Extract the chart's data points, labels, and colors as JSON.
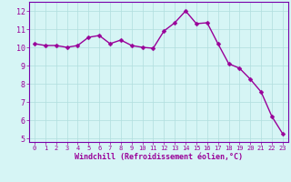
{
  "x": [
    0,
    1,
    2,
    3,
    4,
    5,
    6,
    7,
    8,
    9,
    10,
    11,
    12,
    13,
    14,
    15,
    16,
    17,
    18,
    19,
    20,
    21,
    22,
    23
  ],
  "y": [
    10.2,
    10.1,
    10.1,
    10.0,
    10.1,
    10.55,
    10.65,
    10.2,
    10.4,
    10.1,
    10.0,
    9.95,
    10.9,
    11.35,
    12.0,
    11.3,
    11.35,
    10.2,
    9.1,
    8.85,
    8.25,
    7.55,
    6.2,
    5.25
  ],
  "line_color": "#990099",
  "marker": "D",
  "marker_size": 2.5,
  "bg_color": "#d6f5f5",
  "grid_color": "#b0dede",
  "xlabel": "Windchill (Refroidissement éolien,°C)",
  "xlabel_color": "#990099",
  "tick_color": "#990099",
  "xlim": [
    -0.5,
    23.5
  ],
  "ylim": [
    4.8,
    12.5
  ],
  "yticks": [
    5,
    6,
    7,
    8,
    9,
    10,
    11,
    12
  ],
  "xticks": [
    0,
    1,
    2,
    3,
    4,
    5,
    6,
    7,
    8,
    9,
    10,
    11,
    12,
    13,
    14,
    15,
    16,
    17,
    18,
    19,
    20,
    21,
    22,
    23
  ],
  "spine_color": "#7700aa",
  "line_width": 1.0
}
